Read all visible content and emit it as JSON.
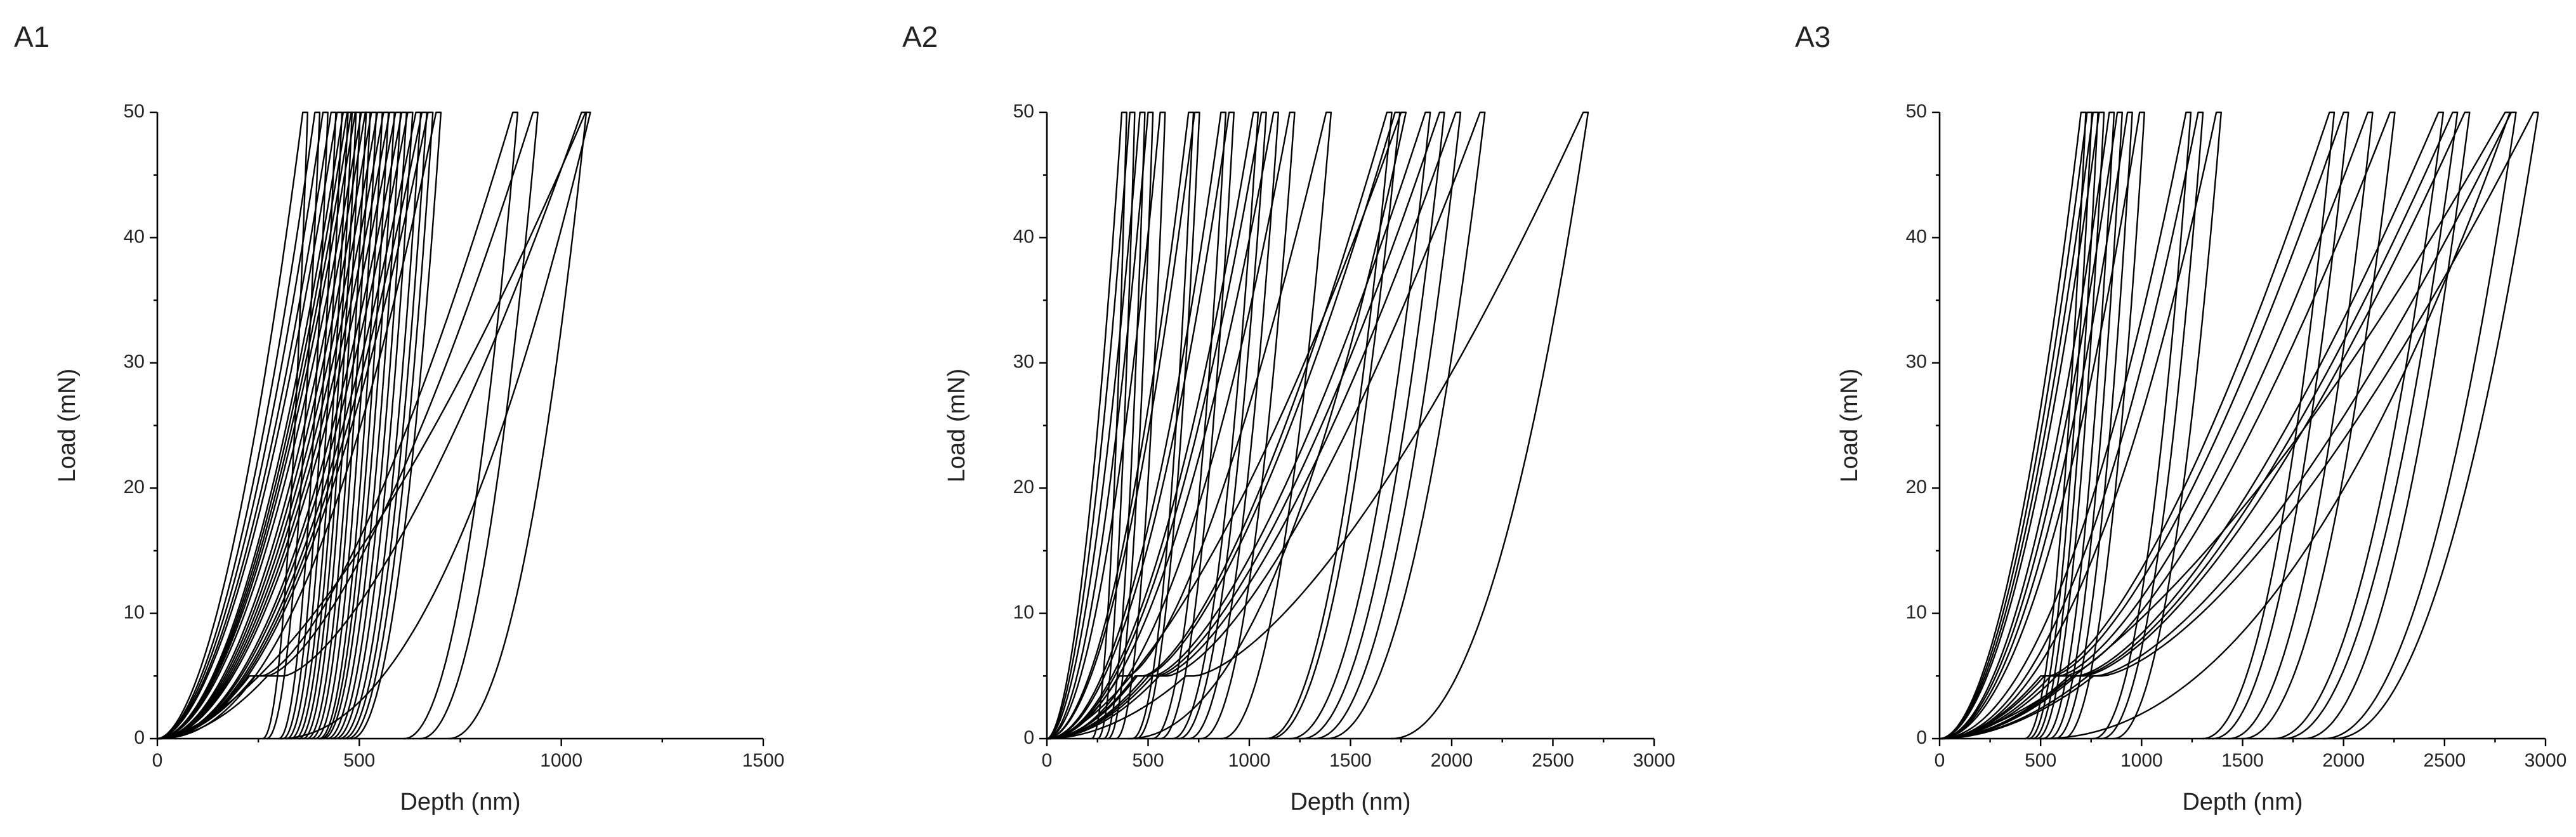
{
  "chart_data": [
    {
      "type": "line",
      "panel_label": "A1",
      "xlabel": "Depth (nm)",
      "ylabel": "Load (mN)",
      "xlim": [
        0,
        1500
      ],
      "ylim": [
        0,
        50
      ],
      "xticks": [
        0,
        500,
        1000,
        1500
      ],
      "yticks": [
        0,
        10,
        20,
        30,
        40,
        50
      ],
      "max_load": 50,
      "hold_load": 5,
      "curves": [
        {
          "h_max": 360,
          "h_res": 260,
          "shape": 1.8,
          "hold_x": 0
        },
        {
          "h_max": 390,
          "h_res": 270,
          "shape": 1.8,
          "hold_x": 0
        },
        {
          "h_max": 410,
          "h_res": 300,
          "shape": 1.8,
          "hold_x": 0
        },
        {
          "h_max": 430,
          "h_res": 310,
          "shape": 1.8,
          "hold_x": 0
        },
        {
          "h_max": 445,
          "h_res": 320,
          "shape": 1.8,
          "hold_x": 0
        },
        {
          "h_max": 460,
          "h_res": 330,
          "shape": 1.9,
          "hold_x": 0
        },
        {
          "h_max": 470,
          "h_res": 340,
          "shape": 1.9,
          "hold_x": 0
        },
        {
          "h_max": 480,
          "h_res": 350,
          "shape": 1.9,
          "hold_x": 0
        },
        {
          "h_max": 490,
          "h_res": 360,
          "shape": 1.9,
          "hold_x": 0
        },
        {
          "h_max": 505,
          "h_res": 370,
          "shape": 1.9,
          "hold_x": 0
        },
        {
          "h_max": 515,
          "h_res": 380,
          "shape": 2.0,
          "hold_x": 0
        },
        {
          "h_max": 530,
          "h_res": 390,
          "shape": 2.0,
          "hold_x": 0
        },
        {
          "h_max": 545,
          "h_res": 400,
          "shape": 2.0,
          "hold_x": 0
        },
        {
          "h_max": 560,
          "h_res": 405,
          "shape": 2.0,
          "hold_x": 0
        },
        {
          "h_max": 575,
          "h_res": 410,
          "shape": 2.0,
          "hold_x": 0
        },
        {
          "h_max": 590,
          "h_res": 420,
          "shape": 2.0,
          "hold_x": 0
        },
        {
          "h_max": 605,
          "h_res": 430,
          "shape": 2.1,
          "hold_x": 0
        },
        {
          "h_max": 620,
          "h_res": 440,
          "shape": 2.1,
          "hold_x": 0
        },
        {
          "h_max": 640,
          "h_res": 450,
          "shape": 2.1,
          "hold_x": 0
        },
        {
          "h_max": 655,
          "h_res": 460,
          "shape": 2.1,
          "hold_x": 0
        },
        {
          "h_max": 670,
          "h_res": 470,
          "shape": 2.1,
          "hold_x": 0
        },
        {
          "h_max": 690,
          "h_res": 480,
          "shape": 2.2,
          "hold_x": 0
        },
        {
          "h_max": 880,
          "h_res": 610,
          "shape": 2.2,
          "hold_x": 30
        },
        {
          "h_max": 930,
          "h_res": 650,
          "shape": 2.2,
          "hold_x": 30
        },
        {
          "h_max": 1050,
          "h_res": 720,
          "shape": 2.2,
          "hold_x": 40
        },
        {
          "h_max": 1060,
          "h_res": 300,
          "shape": 1.6,
          "hold_x": 0
        }
      ]
    },
    {
      "type": "line",
      "panel_label": "A2",
      "xlabel": "Depth (nm)",
      "ylabel": "Load (mN)",
      "xlim": [
        0,
        3000
      ],
      "ylim": [
        0,
        50
      ],
      "xticks": [
        0,
        500,
        1000,
        1500,
        2000,
        2500,
        3000
      ],
      "yticks": [
        0,
        10,
        20,
        30,
        40,
        50
      ],
      "max_load": 50,
      "hold_load": 5,
      "curves": [
        {
          "h_max": 370,
          "h_res": 220,
          "shape": 1.8,
          "hold_x": 0
        },
        {
          "h_max": 410,
          "h_res": 250,
          "shape": 1.8,
          "hold_x": 0
        },
        {
          "h_max": 460,
          "h_res": 280,
          "shape": 1.8,
          "hold_x": 0
        },
        {
          "h_max": 500,
          "h_res": 300,
          "shape": 1.9,
          "hold_x": 0
        },
        {
          "h_max": 560,
          "h_res": 340,
          "shape": 1.9,
          "hold_x": 0
        },
        {
          "h_max": 700,
          "h_res": 420,
          "shape": 1.9,
          "hold_x": 0
        },
        {
          "h_max": 730,
          "h_res": 440,
          "shape": 1.9,
          "hold_x": 0
        },
        {
          "h_max": 860,
          "h_res": 520,
          "shape": 2.0,
          "hold_x": 0
        },
        {
          "h_max": 900,
          "h_res": 560,
          "shape": 2.0,
          "hold_x": 0
        },
        {
          "h_max": 1020,
          "h_res": 620,
          "shape": 2.0,
          "hold_x": 0
        },
        {
          "h_max": 1060,
          "h_res": 650,
          "shape": 2.0,
          "hold_x": 0
        },
        {
          "h_max": 1120,
          "h_res": 700,
          "shape": 2.0,
          "hold_x": 0
        },
        {
          "h_max": 1200,
          "h_res": 760,
          "shape": 2.1,
          "hold_x": 0
        },
        {
          "h_max": 1380,
          "h_res": 860,
          "shape": 2.1,
          "hold_x": 40
        },
        {
          "h_max": 1680,
          "h_res": 1080,
          "shape": 2.1,
          "hold_x": 40
        },
        {
          "h_max": 1720,
          "h_res": 1100,
          "shape": 2.1,
          "hold_x": 40
        },
        {
          "h_max": 1870,
          "h_res": 1200,
          "shape": 2.2,
          "hold_x": 40
        },
        {
          "h_max": 1940,
          "h_res": 1260,
          "shape": 2.2,
          "hold_x": 40
        },
        {
          "h_max": 2020,
          "h_res": 1320,
          "shape": 2.2,
          "hold_x": 40
        },
        {
          "h_max": 2140,
          "h_res": 1380,
          "shape": 2.2,
          "hold_x": 40
        },
        {
          "h_max": 2650,
          "h_res": 1700,
          "shape": 2.2,
          "hold_x": 40
        },
        {
          "h_max": 1750,
          "h_res": 400,
          "shape": 1.6,
          "hold_x": 0
        }
      ]
    },
    {
      "type": "line",
      "panel_label": "A3",
      "xlabel": "Depth (nm)",
      "ylabel": "Load (mN)",
      "xlim": [
        0,
        3000
      ],
      "ylim": [
        0,
        50
      ],
      "xticks": [
        0,
        500,
        1000,
        1500,
        2000,
        2500,
        3000
      ],
      "yticks": [
        0,
        10,
        20,
        30,
        40,
        50
      ],
      "max_load": 50,
      "hold_load": 5,
      "curves": [
        {
          "h_max": 700,
          "h_res": 420,
          "shape": 1.9,
          "hold_x": 0
        },
        {
          "h_max": 730,
          "h_res": 440,
          "shape": 1.9,
          "hold_x": 0
        },
        {
          "h_max": 760,
          "h_res": 460,
          "shape": 1.9,
          "hold_x": 0
        },
        {
          "h_max": 790,
          "h_res": 480,
          "shape": 1.9,
          "hold_x": 0
        },
        {
          "h_max": 840,
          "h_res": 510,
          "shape": 2.0,
          "hold_x": 0
        },
        {
          "h_max": 880,
          "h_res": 540,
          "shape": 2.0,
          "hold_x": 0
        },
        {
          "h_max": 930,
          "h_res": 570,
          "shape": 2.0,
          "hold_x": 0
        },
        {
          "h_max": 990,
          "h_res": 610,
          "shape": 2.0,
          "hold_x": 0
        },
        {
          "h_max": 1220,
          "h_res": 760,
          "shape": 2.0,
          "hold_x": 0
        },
        {
          "h_max": 1280,
          "h_res": 800,
          "shape": 2.1,
          "hold_x": 0
        },
        {
          "h_max": 1370,
          "h_res": 860,
          "shape": 2.1,
          "hold_x": 0
        },
        {
          "h_max": 1930,
          "h_res": 1300,
          "shape": 2.1,
          "hold_x": 40
        },
        {
          "h_max": 2000,
          "h_res": 1350,
          "shape": 2.1,
          "hold_x": 40
        },
        {
          "h_max": 2120,
          "h_res": 1430,
          "shape": 2.2,
          "hold_x": 40
        },
        {
          "h_max": 2230,
          "h_res": 1500,
          "shape": 2.2,
          "hold_x": 40
        },
        {
          "h_max": 2470,
          "h_res": 1650,
          "shape": 2.2,
          "hold_x": 40
        },
        {
          "h_max": 2540,
          "h_res": 1700,
          "shape": 2.2,
          "hold_x": 40
        },
        {
          "h_max": 2600,
          "h_res": 1800,
          "shape": 2.2,
          "hold_x": 40
        },
        {
          "h_max": 2830,
          "h_res": 1900,
          "shape": 2.2,
          "hold_x": 40
        },
        {
          "h_max": 2940,
          "h_res": 1950,
          "shape": 2.2,
          "hold_x": 40
        },
        {
          "h_max": 2800,
          "h_res": 500,
          "shape": 1.6,
          "hold_x": 0
        }
      ]
    }
  ]
}
